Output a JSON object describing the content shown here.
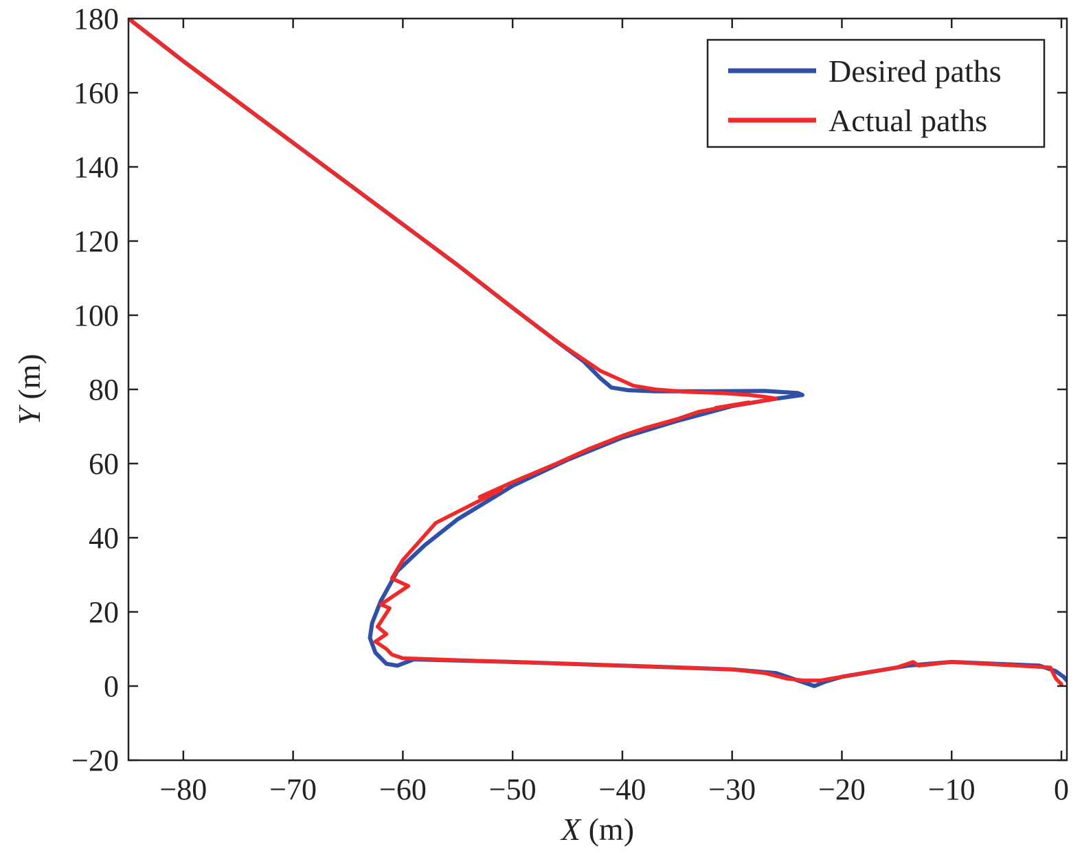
{
  "chart_data": {
    "type": "line",
    "title": "",
    "xlabel": {
      "var": "X",
      "unit": " (m)"
    },
    "ylabel": {
      "var": "Y",
      "unit": " (m)"
    },
    "xlim": [
      -85,
      0.5
    ],
    "ylim": [
      -20,
      180
    ],
    "xticks": [
      -80,
      -70,
      -60,
      -50,
      -40,
      -30,
      -20,
      -10,
      0
    ],
    "yticks": [
      -20,
      0,
      20,
      40,
      60,
      80,
      100,
      120,
      140,
      160,
      180
    ],
    "xtick_labels": [
      "−80",
      "−70",
      "−60",
      "−50",
      "−40",
      "−30",
      "−20",
      "−10",
      "0"
    ],
    "ytick_labels": [
      "−20",
      "0",
      "20",
      "40",
      "60",
      "80",
      "100",
      "120",
      "140",
      "160",
      "180"
    ],
    "grid": false,
    "legend_position": "top-right",
    "series": [
      {
        "name": "Desired paths",
        "color": "#3050a8",
        "points": [
          [
            -85,
            180
          ],
          [
            -80,
            168.5
          ],
          [
            -75,
            157.5
          ],
          [
            -70,
            146.5
          ],
          [
            -65,
            135.5
          ],
          [
            -60,
            124.5
          ],
          [
            -55,
            113.5
          ],
          [
            -50,
            102
          ],
          [
            -46,
            93
          ],
          [
            -43.5,
            87.5
          ],
          [
            -42,
            83
          ],
          [
            -41,
            80.5
          ],
          [
            -39.5,
            79.8
          ],
          [
            -37,
            79.5
          ],
          [
            -32,
            79.5
          ],
          [
            -27,
            79.6
          ],
          [
            -24,
            79
          ],
          [
            -23.6,
            78.5
          ],
          [
            -26,
            77.5
          ],
          [
            -30,
            75.5
          ],
          [
            -35,
            71.5
          ],
          [
            -40,
            67
          ],
          [
            -45,
            61
          ],
          [
            -50,
            54
          ],
          [
            -55,
            45
          ],
          [
            -58,
            38
          ],
          [
            -60.5,
            31
          ],
          [
            -62,
            23
          ],
          [
            -62.8,
            17
          ],
          [
            -63,
            13
          ],
          [
            -62.5,
            9
          ],
          [
            -61.5,
            6
          ],
          [
            -60.5,
            5.5
          ],
          [
            -59,
            7.2
          ],
          [
            -50,
            6.5
          ],
          [
            -40,
            5.5
          ],
          [
            -30,
            4.5
          ],
          [
            -26,
            3.5
          ],
          [
            -24,
            1.5
          ],
          [
            -22.5,
            0
          ],
          [
            -21.5,
            1.2
          ],
          [
            -20,
            2.5
          ],
          [
            -17,
            4
          ],
          [
            -14,
            5.5
          ],
          [
            -10,
            6.5
          ],
          [
            -6,
            6
          ],
          [
            -2,
            5.5
          ],
          [
            -0.5,
            4
          ],
          [
            0.2,
            2.5
          ],
          [
            0.5,
            1.5
          ]
        ]
      },
      {
        "name": "Actual paths",
        "color": "#ee2a2a",
        "points": [
          [
            -85,
            180
          ],
          [
            -80,
            168.5
          ],
          [
            -75,
            157.5
          ],
          [
            -70,
            146.5
          ],
          [
            -65,
            135.5
          ],
          [
            -60,
            124.5
          ],
          [
            -55,
            113.5
          ],
          [
            -50,
            102
          ],
          [
            -46,
            93
          ],
          [
            -43.5,
            88
          ],
          [
            -42,
            85
          ],
          [
            -40.5,
            83
          ],
          [
            -39,
            81
          ],
          [
            -37,
            80
          ],
          [
            -34,
            79.3
          ],
          [
            -31,
            79
          ],
          [
            -28.5,
            78.5
          ],
          [
            -27,
            78
          ],
          [
            -26,
            77.5
          ],
          [
            -29,
            76
          ],
          [
            -31.5,
            75
          ],
          [
            -28.5,
            76.5
          ],
          [
            -33,
            74
          ],
          [
            -35,
            72
          ],
          [
            -38,
            69.5
          ],
          [
            -40,
            67.5
          ],
          [
            -43,
            64
          ],
          [
            -46,
            60
          ],
          [
            -50,
            55
          ],
          [
            -53,
            51
          ],
          [
            -51,
            53
          ],
          [
            -55,
            47
          ],
          [
            -57,
            44
          ],
          [
            -58.5,
            39
          ],
          [
            -60,
            34
          ],
          [
            -61,
            29
          ],
          [
            -59.5,
            27
          ],
          [
            -62,
            22
          ],
          [
            -61.2,
            21
          ],
          [
            -62.3,
            16
          ],
          [
            -61.5,
            14
          ],
          [
            -62.5,
            12
          ],
          [
            -61.5,
            10
          ],
          [
            -61,
            8.5
          ],
          [
            -60,
            7.5
          ],
          [
            -55,
            7
          ],
          [
            -50,
            6.5
          ],
          [
            -45,
            6
          ],
          [
            -40,
            5.5
          ],
          [
            -35,
            5
          ],
          [
            -30,
            4.5
          ],
          [
            -27,
            3.5
          ],
          [
            -25,
            2
          ],
          [
            -23.5,
            1.5
          ],
          [
            -22,
            1.5
          ],
          [
            -21,
            2
          ],
          [
            -19,
            3
          ],
          [
            -17,
            4
          ],
          [
            -15,
            5
          ],
          [
            -13.5,
            6.5
          ],
          [
            -13,
            5.5
          ],
          [
            -10,
            6.5
          ],
          [
            -7,
            6
          ],
          [
            -4,
            5.5
          ],
          [
            -1,
            5
          ],
          [
            -0.5,
            2
          ],
          [
            0,
            0.5
          ]
        ]
      }
    ]
  }
}
